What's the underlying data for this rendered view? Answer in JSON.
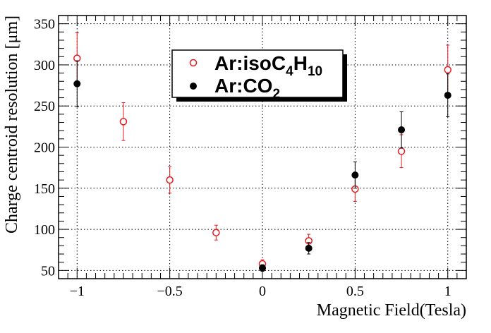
{
  "chart_data": {
    "type": "scatter",
    "xlabel": "Magnetic Field(Tesla)",
    "ylabel": "Charge centroid resolution [μm]",
    "xlim": [
      -1.1,
      1.1
    ],
    "ylim": [
      40,
      360
    ],
    "xticks": [
      -1,
      -0.5,
      0,
      0.5,
      1
    ],
    "xtick_labels": [
      "−1",
      "−0.5",
      "0",
      "0.5",
      "1"
    ],
    "yticks": [
      50,
      100,
      150,
      200,
      250,
      300,
      350
    ],
    "ytick_labels": [
      "50",
      "100",
      "150",
      "200",
      "250",
      "300",
      "350"
    ],
    "grid": true,
    "legend_position": "top-center",
    "series": [
      {
        "name": "Ar:isoC4H10",
        "label_parts": {
          "base": "Ar:isoC",
          "sub1": "4",
          "mid": "H",
          "sub2": "10"
        },
        "marker": "open-circle",
        "color": "#e8181c",
        "x": [
          -1,
          -0.75,
          -0.5,
          -0.25,
          0,
          0.25,
          0.5,
          0.75,
          1
        ],
        "y": [
          308,
          231,
          160,
          96,
          58,
          86,
          149,
          195,
          294
        ],
        "err": [
          31,
          23,
          16,
          9,
          5,
          8,
          15,
          20,
          30
        ]
      },
      {
        "name": "Ar:CO2",
        "label_parts": {
          "base": "Ar:CO",
          "sub1": "2"
        },
        "marker": "filled-circle",
        "color": "#000000",
        "x": [
          -1,
          0,
          0.25,
          0.5,
          0.75,
          1
        ],
        "y": [
          277,
          53,
          77,
          166,
          221,
          263
        ],
        "err": [
          28,
          4,
          7,
          16,
          22,
          26
        ]
      }
    ]
  }
}
